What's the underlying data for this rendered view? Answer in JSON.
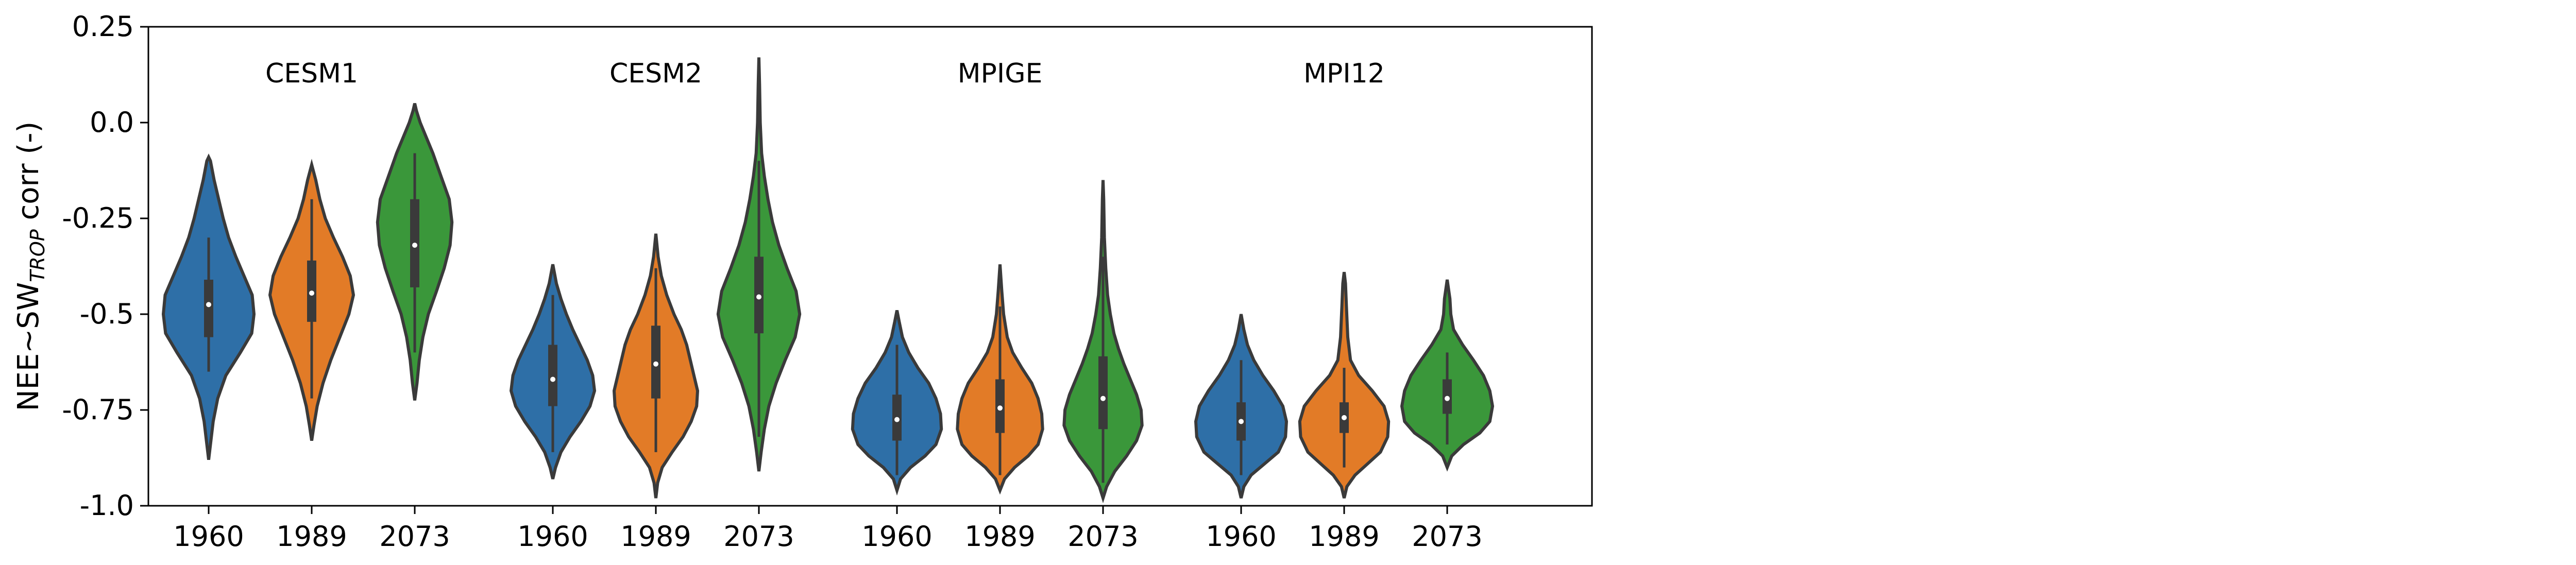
{
  "chart_data": {
    "type": "violin",
    "ylabel_prefix": "NEE~SW",
    "ylabel_subscript": "TROP",
    "ylabel_suffix": " corr (-)",
    "ylim": [
      -1.0,
      0.25
    ],
    "yticks": [
      0.25,
      0.0,
      -0.25,
      -0.5,
      -0.75,
      -1.0
    ],
    "ytick_labels": [
      "0.25",
      "0.0",
      "-0.25",
      "-0.5",
      "-0.75",
      "-1.0"
    ],
    "colors": {
      "1960": "#2e6fa7",
      "1989": "#e27b27",
      "2073": "#3a973a",
      "outline": "#3a3a3a",
      "box": "#3a3a3a",
      "median": "#ffffff"
    },
    "grid": false,
    "groups": [
      {
        "name": "CESM1",
        "violins": [
          {
            "year": "1960",
            "min": -0.88,
            "max": -0.09,
            "q1": -0.56,
            "median": -0.475,
            "q3": -0.41,
            "whisker_low": -0.65,
            "whisker_high": -0.3,
            "profile": [
              [
                -0.88,
                0.0
              ],
              [
                -0.84,
                0.04
              ],
              [
                -0.78,
                0.1
              ],
              [
                -0.72,
                0.2
              ],
              [
                -0.66,
                0.38
              ],
              [
                -0.6,
                0.7
              ],
              [
                -0.55,
                0.95
              ],
              [
                -0.5,
                1.0
              ],
              [
                -0.45,
                0.96
              ],
              [
                -0.4,
                0.78
              ],
              [
                -0.35,
                0.6
              ],
              [
                -0.3,
                0.44
              ],
              [
                -0.25,
                0.32
              ],
              [
                -0.2,
                0.22
              ],
              [
                -0.15,
                0.12
              ],
              [
                -0.1,
                0.04
              ],
              [
                -0.09,
                0.0
              ]
            ]
          },
          {
            "year": "1989",
            "min": -0.83,
            "max": -0.11,
            "q1": -0.52,
            "median": -0.445,
            "q3": -0.36,
            "whisker_low": -0.72,
            "whisker_high": -0.2,
            "profile": [
              [
                -0.83,
                0.0
              ],
              [
                -0.79,
                0.05
              ],
              [
                -0.74,
                0.12
              ],
              [
                -0.68,
                0.25
              ],
              [
                -0.62,
                0.42
              ],
              [
                -0.56,
                0.62
              ],
              [
                -0.5,
                0.82
              ],
              [
                -0.45,
                0.92
              ],
              [
                -0.4,
                0.85
              ],
              [
                -0.35,
                0.68
              ],
              [
                -0.3,
                0.48
              ],
              [
                -0.25,
                0.3
              ],
              [
                -0.2,
                0.18
              ],
              [
                -0.15,
                0.09
              ],
              [
                -0.11,
                0.0
              ]
            ]
          },
          {
            "year": "2073",
            "min": -0.725,
            "max": 0.05,
            "q1": -0.43,
            "median": -0.32,
            "q3": -0.2,
            "whisker_low": -0.6,
            "whisker_high": -0.08,
            "profile": [
              [
                -0.725,
                0.0
              ],
              [
                -0.68,
                0.05
              ],
              [
                -0.62,
                0.1
              ],
              [
                -0.56,
                0.18
              ],
              [
                -0.5,
                0.3
              ],
              [
                -0.44,
                0.48
              ],
              [
                -0.38,
                0.65
              ],
              [
                -0.32,
                0.78
              ],
              [
                -0.26,
                0.82
              ],
              [
                -0.2,
                0.76
              ],
              [
                -0.14,
                0.58
              ],
              [
                -0.08,
                0.4
              ],
              [
                -0.04,
                0.26
              ],
              [
                0.0,
                0.12
              ],
              [
                0.03,
                0.04
              ],
              [
                0.05,
                0.0
              ]
            ]
          }
        ]
      },
      {
        "name": "CESM2",
        "violins": [
          {
            "year": "1960",
            "min": -0.93,
            "max": -0.37,
            "q1": -0.74,
            "median": -0.67,
            "q3": -0.58,
            "whisker_low": -0.86,
            "whisker_high": -0.45,
            "profile": [
              [
                -0.93,
                0.0
              ],
              [
                -0.9,
                0.06
              ],
              [
                -0.86,
                0.18
              ],
              [
                -0.82,
                0.38
              ],
              [
                -0.78,
                0.62
              ],
              [
                -0.74,
                0.82
              ],
              [
                -0.7,
                0.92
              ],
              [
                -0.66,
                0.88
              ],
              [
                -0.62,
                0.76
              ],
              [
                -0.58,
                0.6
              ],
              [
                -0.54,
                0.44
              ],
              [
                -0.5,
                0.3
              ],
              [
                -0.46,
                0.18
              ],
              [
                -0.42,
                0.08
              ],
              [
                -0.37,
                0.0
              ]
            ]
          },
          {
            "year": "1989",
            "min": -0.98,
            "max": -0.29,
            "q1": -0.72,
            "median": -0.63,
            "q3": -0.53,
            "whisker_low": -0.86,
            "whisker_high": -0.38,
            "profile": [
              [
                -0.98,
                0.0
              ],
              [
                -0.94,
                0.04
              ],
              [
                -0.9,
                0.14
              ],
              [
                -0.86,
                0.36
              ],
              [
                -0.82,
                0.6
              ],
              [
                -0.78,
                0.78
              ],
              [
                -0.74,
                0.9
              ],
              [
                -0.7,
                0.92
              ],
              [
                -0.66,
                0.84
              ],
              [
                -0.62,
                0.76
              ],
              [
                -0.58,
                0.68
              ],
              [
                -0.54,
                0.56
              ],
              [
                -0.5,
                0.4
              ],
              [
                -0.45,
                0.24
              ],
              [
                -0.4,
                0.12
              ],
              [
                -0.35,
                0.05
              ],
              [
                -0.29,
                0.0
              ]
            ]
          },
          {
            "year": "2073",
            "min": -0.91,
            "max": 0.17,
            "q1": -0.55,
            "median": -0.455,
            "q3": -0.35,
            "whisker_low": -0.82,
            "whisker_high": -0.1,
            "profile": [
              [
                -0.91,
                0.0
              ],
              [
                -0.86,
                0.05
              ],
              [
                -0.8,
                0.12
              ],
              [
                -0.74,
                0.22
              ],
              [
                -0.68,
                0.38
              ],
              [
                -0.62,
                0.58
              ],
              [
                -0.56,
                0.8
              ],
              [
                -0.5,
                0.9
              ],
              [
                -0.44,
                0.82
              ],
              [
                -0.38,
                0.62
              ],
              [
                -0.32,
                0.44
              ],
              [
                -0.26,
                0.3
              ],
              [
                -0.2,
                0.2
              ],
              [
                -0.14,
                0.12
              ],
              [
                -0.08,
                0.06
              ],
              [
                0.0,
                0.03
              ],
              [
                0.1,
                0.015
              ],
              [
                0.17,
                0.0
              ]
            ]
          }
        ]
      },
      {
        "name": "MPIGE",
        "violins": [
          {
            "year": "1960",
            "min": -0.96,
            "max": -0.49,
            "q1": -0.83,
            "median": -0.775,
            "q3": -0.71,
            "whisker_low": -0.92,
            "whisker_high": -0.58,
            "profile": [
              [
                -0.96,
                0.0
              ],
              [
                -0.93,
                0.08
              ],
              [
                -0.9,
                0.3
              ],
              [
                -0.87,
                0.62
              ],
              [
                -0.84,
                0.86
              ],
              [
                -0.8,
                0.98
              ],
              [
                -0.76,
                0.96
              ],
              [
                -0.72,
                0.86
              ],
              [
                -0.68,
                0.7
              ],
              [
                -0.64,
                0.46
              ],
              [
                -0.6,
                0.26
              ],
              [
                -0.56,
                0.12
              ],
              [
                -0.52,
                0.05
              ],
              [
                -0.49,
                0.0
              ]
            ]
          },
          {
            "year": "1989",
            "min": -0.96,
            "max": -0.37,
            "q1": -0.81,
            "median": -0.745,
            "q3": -0.67,
            "whisker_low": -0.92,
            "whisker_high": -0.48,
            "profile": [
              [
                -0.96,
                0.0
              ],
              [
                -0.93,
                0.1
              ],
              [
                -0.9,
                0.32
              ],
              [
                -0.87,
                0.62
              ],
              [
                -0.84,
                0.84
              ],
              [
                -0.8,
                0.94
              ],
              [
                -0.76,
                0.92
              ],
              [
                -0.72,
                0.84
              ],
              [
                -0.68,
                0.7
              ],
              [
                -0.64,
                0.48
              ],
              [
                -0.6,
                0.28
              ],
              [
                -0.56,
                0.16
              ],
              [
                -0.5,
                0.08
              ],
              [
                -0.44,
                0.04
              ],
              [
                -0.37,
                0.0
              ]
            ]
          },
          {
            "year": "2073",
            "min": -0.98,
            "max": -0.15,
            "q1": -0.8,
            "median": -0.72,
            "q3": -0.61,
            "whisker_low": -0.94,
            "whisker_high": -0.35,
            "profile": [
              [
                -0.98,
                0.0
              ],
              [
                -0.95,
                0.08
              ],
              [
                -0.91,
                0.26
              ],
              [
                -0.87,
                0.52
              ],
              [
                -0.83,
                0.74
              ],
              [
                -0.79,
                0.86
              ],
              [
                -0.75,
                0.84
              ],
              [
                -0.71,
                0.74
              ],
              [
                -0.67,
                0.6
              ],
              [
                -0.63,
                0.46
              ],
              [
                -0.59,
                0.34
              ],
              [
                -0.55,
                0.24
              ],
              [
                -0.5,
                0.16
              ],
              [
                -0.45,
                0.1
              ],
              [
                -0.38,
                0.06
              ],
              [
                -0.3,
                0.03
              ],
              [
                -0.2,
                0.015
              ],
              [
                -0.15,
                0.0
              ]
            ]
          }
        ]
      },
      {
        "name": "MPI12",
        "violins": [
          {
            "year": "1960",
            "min": -0.98,
            "max": -0.5,
            "q1": -0.83,
            "median": -0.78,
            "q3": -0.73,
            "whisker_low": -0.92,
            "whisker_high": -0.62,
            "profile": [
              [
                -0.98,
                0.0
              ],
              [
                -0.95,
                0.06
              ],
              [
                -0.92,
                0.22
              ],
              [
                -0.89,
                0.52
              ],
              [
                -0.86,
                0.82
              ],
              [
                -0.82,
                0.98
              ],
              [
                -0.78,
                1.0
              ],
              [
                -0.74,
                0.92
              ],
              [
                -0.7,
                0.72
              ],
              [
                -0.66,
                0.48
              ],
              [
                -0.62,
                0.28
              ],
              [
                -0.58,
                0.14
              ],
              [
                -0.54,
                0.06
              ],
              [
                -0.5,
                0.0
              ]
            ]
          },
          {
            "year": "1989",
            "min": -0.98,
            "max": -0.39,
            "q1": -0.81,
            "median": -0.77,
            "q3": -0.73,
            "whisker_low": -0.9,
            "whisker_high": -0.64,
            "profile": [
              [
                -0.98,
                0.0
              ],
              [
                -0.95,
                0.06
              ],
              [
                -0.92,
                0.24
              ],
              [
                -0.89,
                0.52
              ],
              [
                -0.86,
                0.8
              ],
              [
                -0.82,
                0.96
              ],
              [
                -0.78,
                0.98
              ],
              [
                -0.74,
                0.88
              ],
              [
                -0.7,
                0.62
              ],
              [
                -0.66,
                0.32
              ],
              [
                -0.62,
                0.14
              ],
              [
                -0.56,
                0.08
              ],
              [
                -0.48,
                0.05
              ],
              [
                -0.42,
                0.03
              ],
              [
                -0.39,
                0.0
              ]
            ]
          },
          {
            "year": "2073",
            "min": -0.9,
            "max": -0.41,
            "q1": -0.76,
            "median": -0.72,
            "q3": -0.67,
            "whisker_low": -0.84,
            "whisker_high": -0.6,
            "profile": [
              [
                -0.9,
                0.0
              ],
              [
                -0.87,
                0.1
              ],
              [
                -0.84,
                0.36
              ],
              [
                -0.81,
                0.72
              ],
              [
                -0.78,
                0.94
              ],
              [
                -0.74,
                1.0
              ],
              [
                -0.7,
                0.94
              ],
              [
                -0.66,
                0.8
              ],
              [
                -0.62,
                0.58
              ],
              [
                -0.58,
                0.34
              ],
              [
                -0.54,
                0.14
              ],
              [
                -0.5,
                0.08
              ],
              [
                -0.46,
                0.06
              ],
              [
                -0.41,
                0.0
              ]
            ]
          }
        ]
      }
    ]
  }
}
